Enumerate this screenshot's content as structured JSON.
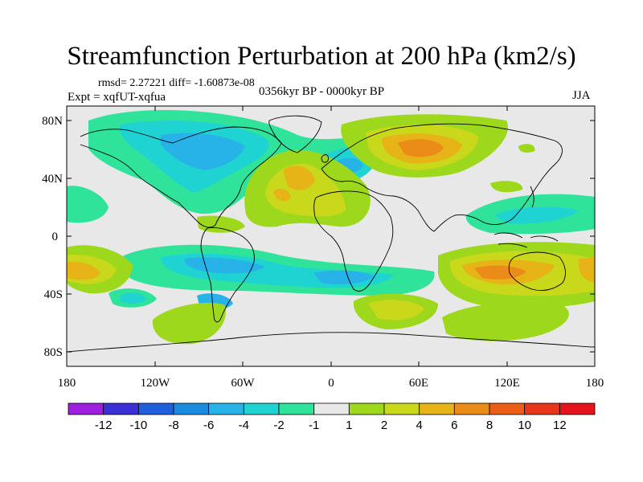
{
  "title": "Streamfunction Perturbation at 200 hPa (km2/s)",
  "stats": "rmsd= 2.27221 diff= -1.60873e-08",
  "left_label": "Expt = xqfUT-xqfua",
  "center_label": "0356kyr BP - 0000kyr BP",
  "right_label": "JJA",
  "y_ticks": [
    "80N",
    "40N",
    "0",
    "40S",
    "80S"
  ],
  "x_ticks": [
    "180",
    "120W",
    "60W",
    "0",
    "60E",
    "120E",
    "180"
  ],
  "colorbar": {
    "labels": [
      "-12",
      "-10",
      "-8",
      "-6",
      "-4",
      "-2",
      "-1",
      "1",
      "2",
      "4",
      "6",
      "8",
      "10",
      "12"
    ],
    "colors": [
      "#9d1fe0",
      "#3b2fd6",
      "#1f5fd9",
      "#1b8be0",
      "#27b3e8",
      "#1fd3d3",
      "#2fe39a",
      "#e8e8e8",
      "#9ed81c",
      "#c9d81a",
      "#e7b418",
      "#ec8c18",
      "#ec5e18",
      "#e8361a",
      "#e6141a"
    ]
  },
  "colors": {
    "ocean": "#e8e8e8"
  }
}
